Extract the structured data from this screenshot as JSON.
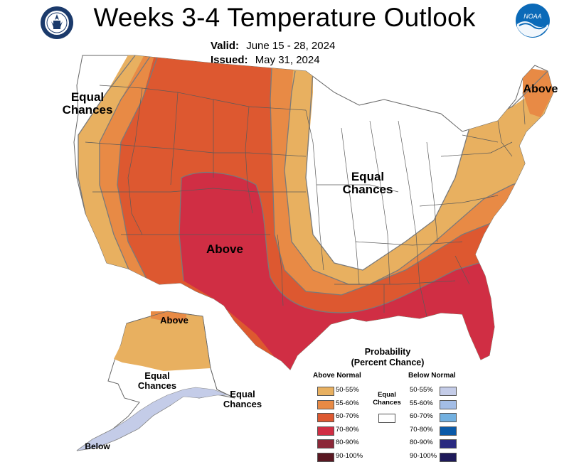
{
  "header": {
    "title": "Weeks 3-4 Temperature Outlook",
    "valid_label": "Valid:",
    "valid_value": "June 15 - 28, 2024",
    "issued_label": "Issued:",
    "issued_value": "May 31, 2024",
    "noaa_logo_text": "NOAA"
  },
  "map_labels": {
    "west_equal": "Equal Chances",
    "center_equal": "Equal Chances",
    "northeast_above": "Above",
    "southwest_above": "Above",
    "alaska_above": "Above",
    "alaska_equal": "Equal Chances",
    "alaska_east_equal": "Equal Chances",
    "alaska_below": "Below"
  },
  "legend": {
    "title_line1": "Probability",
    "title_line2": "(Percent Chance)",
    "above_heading": "Above Normal",
    "below_heading": "Below Normal",
    "equal_label": "Equal Chances",
    "equal_color": "#ffffff",
    "above": [
      {
        "label": "50-55%",
        "color": "#e8b060"
      },
      {
        "label": "55-60%",
        "color": "#e88a45"
      },
      {
        "label": "60-70%",
        "color": "#dd5830"
      },
      {
        "label": "70-80%",
        "color": "#d02e44"
      },
      {
        "label": "80-90%",
        "color": "#8c2838"
      },
      {
        "label": "90-100%",
        "color": "#5a1822"
      }
    ],
    "below": [
      {
        "label": "50-55%",
        "color": "#c4cce8"
      },
      {
        "label": "55-60%",
        "color": "#a3bde6"
      },
      {
        "label": "60-70%",
        "color": "#72b0e0"
      },
      {
        "label": "70-80%",
        "color": "#0a5aa8"
      },
      {
        "label": "80-90%",
        "color": "#2a2a80"
      },
      {
        "label": "90-100%",
        "color": "#1e1a5a"
      }
    ]
  },
  "colors": {
    "a50": "#e8b060",
    "a55": "#e88a45",
    "a60": "#dd5830",
    "a70": "#d02e44",
    "b50": "#c4cce8",
    "border": "#5a5a5a",
    "contour": "#777777"
  }
}
